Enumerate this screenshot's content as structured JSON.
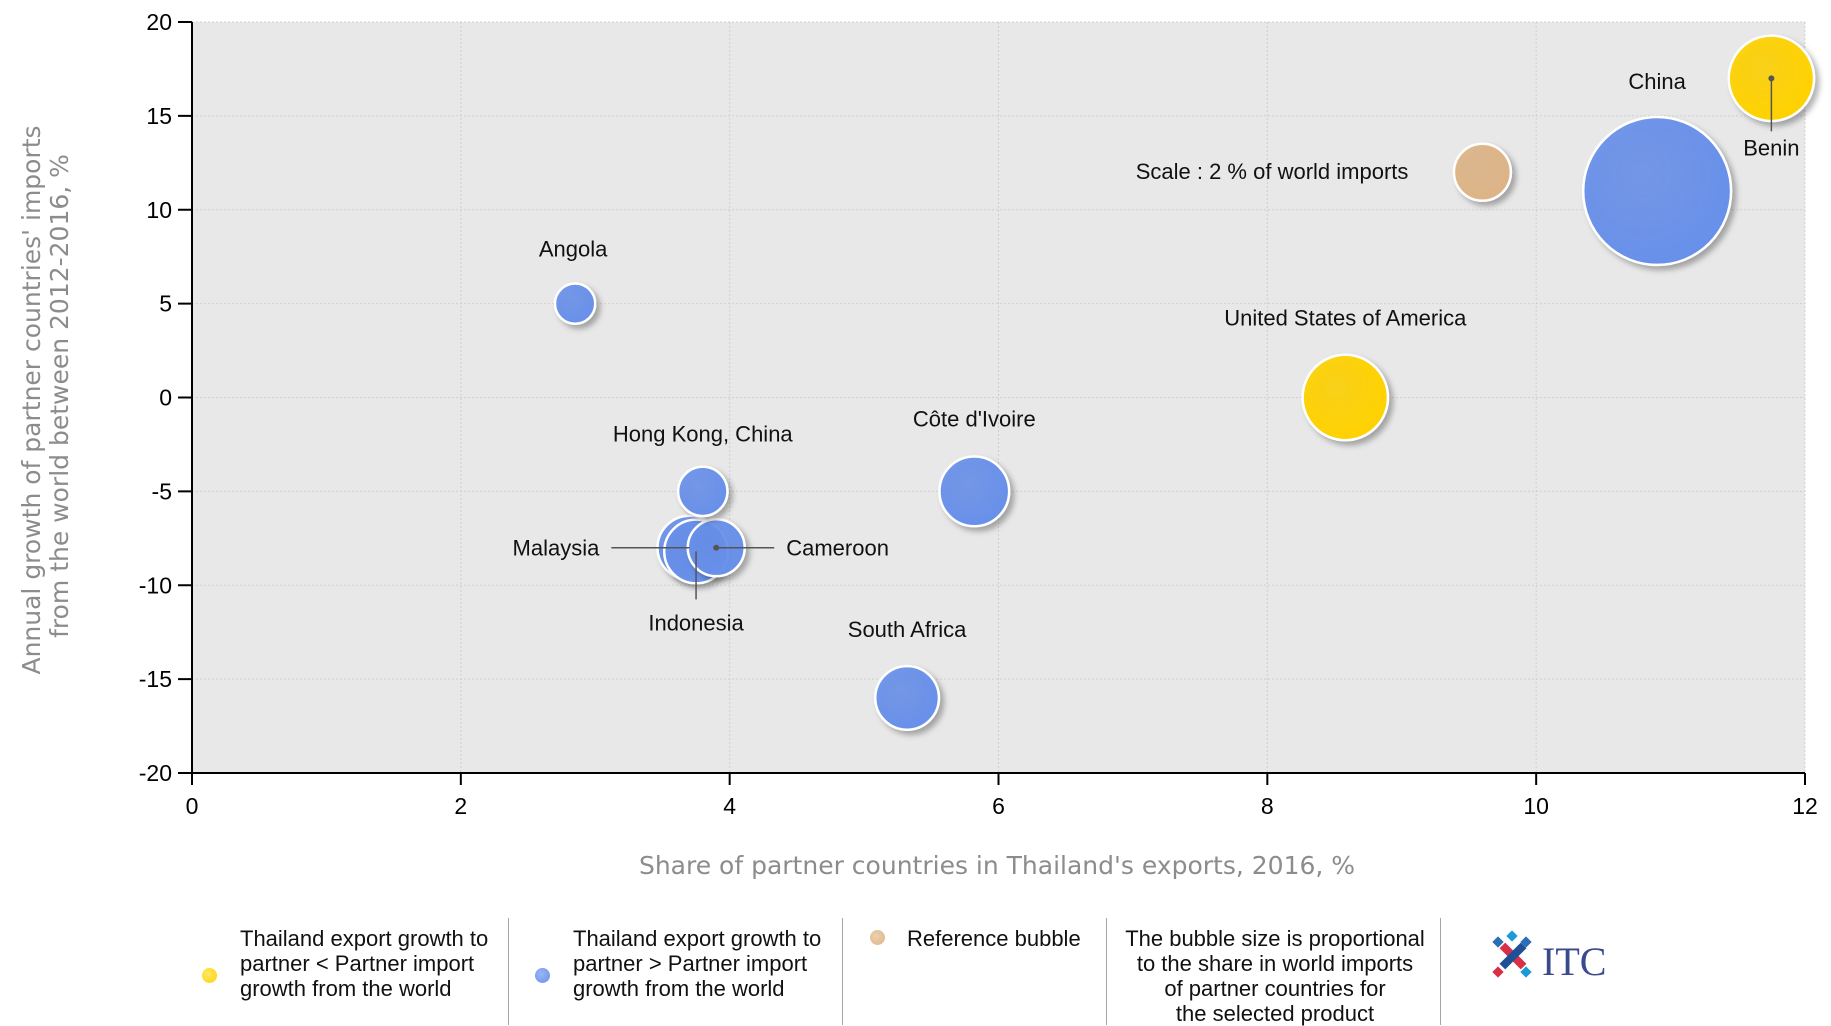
{
  "chart_data": {
    "type": "scatter",
    "subtype": "bubble",
    "xlabel": "Share of partner countries in Thailand's exports, 2016, %",
    "ylabel_lines": [
      "Annual growth of partner countries' imports",
      "from the world between 2012-2016, %"
    ],
    "xlim": [
      0,
      12
    ],
    "ylim": [
      -20,
      20
    ],
    "x_ticks": [
      0,
      2,
      4,
      6,
      8,
      10,
      12
    ],
    "y_ticks": [
      20,
      15,
      10,
      5,
      0,
      -5,
      -10,
      -15,
      -20
    ],
    "grid": true,
    "colors": {
      "yellow": "#FFD200",
      "blue": "#6890EA",
      "reference": "#DDB486",
      "plot_bg": "#E8E8E8"
    },
    "series": [
      {
        "name": "Thailand export growth to partner < Partner import growth from the world",
        "color": "yellow",
        "points": [
          {
            "label": "Benin",
            "x": 11.75,
            "y": 17,
            "size": 0.9
          },
          {
            "label": "United States of America",
            "x": 8.58,
            "y": 0,
            "size": 0.9
          }
        ]
      },
      {
        "name": "Thailand export growth to partner > Partner import growth from the world",
        "color": "blue",
        "points": [
          {
            "label": "China",
            "x": 10.9,
            "y": 11,
            "size": 2.7
          },
          {
            "label": "Angola",
            "x": 2.85,
            "y": 5,
            "size": 0.2
          },
          {
            "label": "Côte d'Ivoire",
            "x": 5.82,
            "y": -5,
            "size": 0.6
          },
          {
            "label": "Hong Kong, China",
            "x": 3.8,
            "y": -5,
            "size": 0.3
          },
          {
            "label": "Malaysia",
            "x": 3.7,
            "y": -8,
            "size": 0.5
          },
          {
            "label": "Cameroon",
            "x": 3.9,
            "y": -8,
            "size": 0.4
          },
          {
            "label": "Indonesia",
            "x": 3.75,
            "y": -8.2,
            "size": 0.5
          },
          {
            "label": "South Africa",
            "x": 5.32,
            "y": -16,
            "size": 0.5
          }
        ]
      },
      {
        "name": "Reference bubble",
        "color": "reference",
        "points": [
          {
            "label": "Scale : 2 % of world imports",
            "x": 9.6,
            "y": 12,
            "size": 0.4
          }
        ]
      }
    ]
  },
  "legend": {
    "item1_lines": [
      "Thailand export growth to",
      "partner < Partner import",
      "growth from the world"
    ],
    "item2_lines": [
      "Thailand export growth to",
      "partner > Partner import",
      "growth from the world"
    ],
    "item3": "Reference bubble",
    "note_lines": [
      "The bubble size is proportional",
      "to the share in world imports",
      "of partner countries for",
      "the selected product"
    ],
    "logo_text": "ITC"
  }
}
